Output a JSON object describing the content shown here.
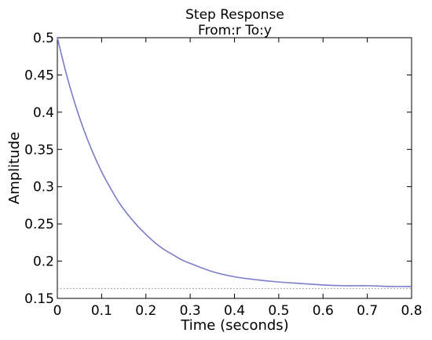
{
  "chart_data": {
    "type": "line",
    "title": "Step Response",
    "subtitle": "From:r  To:y",
    "xlabel": "Time (seconds)",
    "ylabel": "Amplitude",
    "xlim": [
      0,
      0.8
    ],
    "ylim": [
      0.15,
      0.5
    ],
    "xticks": [
      0,
      0.1,
      0.2,
      0.3,
      0.4,
      0.5,
      0.6,
      0.7,
      0.8
    ],
    "yticks": [
      0.15,
      0.2,
      0.25,
      0.3,
      0.35,
      0.4,
      0.45,
      0.5
    ],
    "grid": false,
    "series": [
      {
        "color": "#7b7bc8",
        "x": [
          0,
          0.02,
          0.04,
          0.06,
          0.08,
          0.1,
          0.12,
          0.14,
          0.16,
          0.18,
          0.2,
          0.22,
          0.24,
          0.26,
          0.28,
          0.3,
          0.35,
          0.4,
          0.45,
          0.5,
          0.55,
          0.6,
          0.65,
          0.7,
          0.75,
          0.8
        ],
        "y": [
          0.5,
          0.452,
          0.411,
          0.376,
          0.346,
          0.32,
          0.298,
          0.278,
          0.262,
          0.248,
          0.236,
          0.225,
          0.216,
          0.209,
          0.202,
          0.197,
          0.186,
          0.179,
          0.175,
          0.172,
          0.17,
          0.168,
          0.167,
          0.167,
          0.166,
          0.166
        ]
      }
    ],
    "reference_lines": [
      {
        "y": 0.163,
        "style": "dotted",
        "color": "#888888",
        "x_range": [
          0,
          0.8
        ]
      }
    ]
  }
}
